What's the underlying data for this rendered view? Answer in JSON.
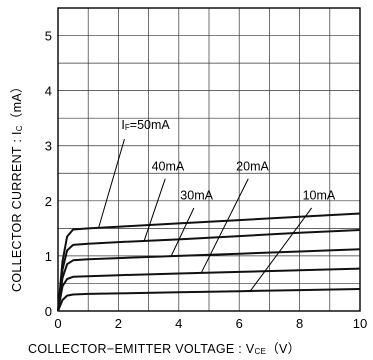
{
  "chart_data": {
    "type": "line",
    "xlabel": "COLLECTOR−EMITTER VOLTAGE : V",
    "xlabel_sub": "CE",
    "xlabel_unit": "（V）",
    "ylabel": "COLLECTOR CURRENT : I",
    "ylabel_sub": "C",
    "ylabel_unit": "（mA）",
    "xlim": [
      0,
      10
    ],
    "ylim": [
      0,
      5.5
    ],
    "x_ticks": [
      "0",
      "2",
      "4",
      "6",
      "8",
      "10"
    ],
    "x_tick_values": [
      0,
      2,
      4,
      6,
      8,
      10
    ],
    "y_ticks": [
      "0",
      "1",
      "2",
      "3",
      "4",
      "5"
    ],
    "y_tick_values": [
      0,
      1,
      2,
      3,
      4,
      5
    ],
    "grid": true,
    "series": [
      {
        "name": "IF=50mA",
        "x": [
          0,
          0.15,
          0.3,
          0.5,
          1,
          2,
          4,
          6,
          8,
          10
        ],
        "y": [
          0,
          0.9,
          1.35,
          1.48,
          1.5,
          1.53,
          1.59,
          1.65,
          1.71,
          1.77
        ]
      },
      {
        "name": "40mA",
        "x": [
          0,
          0.15,
          0.3,
          0.5,
          1,
          2,
          4,
          6,
          8,
          10
        ],
        "y": [
          0,
          0.75,
          1.1,
          1.2,
          1.22,
          1.25,
          1.3,
          1.36,
          1.42,
          1.47
        ]
      },
      {
        "name": "30mA",
        "x": [
          0,
          0.15,
          0.3,
          0.5,
          1,
          2,
          4,
          6,
          8,
          10
        ],
        "y": [
          0,
          0.6,
          0.85,
          0.92,
          0.94,
          0.96,
          1.0,
          1.04,
          1.08,
          1.12
        ]
      },
      {
        "name": "20mA",
        "x": [
          0,
          0.15,
          0.3,
          0.5,
          1,
          2,
          4,
          6,
          8,
          10
        ],
        "y": [
          0,
          0.45,
          0.58,
          0.62,
          0.63,
          0.65,
          0.68,
          0.71,
          0.74,
          0.77
        ]
      },
      {
        "name": "10mA",
        "x": [
          0,
          0.15,
          0.3,
          0.5,
          1,
          2,
          4,
          6,
          8,
          10
        ],
        "y": [
          0,
          0.2,
          0.28,
          0.3,
          0.31,
          0.32,
          0.34,
          0.36,
          0.38,
          0.4
        ]
      }
    ],
    "annotations": [
      {
        "label": "I",
        "sub": "F",
        "rest": "=50mA",
        "text_x": 2.1,
        "text_y": 3.3,
        "leader_from": [
          2.2,
          3.12
        ],
        "leader_to": [
          1.35,
          1.52
        ]
      },
      {
        "label": "40mA",
        "text_x": 3.1,
        "text_y": 2.55,
        "leader_from": [
          3.55,
          2.4
        ],
        "leader_to": [
          2.85,
          1.27
        ]
      },
      {
        "label": "30mA",
        "text_x": 4.05,
        "text_y": 2.02,
        "leader_from": [
          4.5,
          1.87
        ],
        "leader_to": [
          3.75,
          1.0
        ]
      },
      {
        "label": "20mA",
        "text_x": 5.9,
        "text_y": 2.55,
        "leader_from": [
          6.3,
          2.4
        ],
        "leader_to": [
          4.75,
          0.7
        ]
      },
      {
        "label": "10mA",
        "text_x": 8.1,
        "text_y": 2.02,
        "leader_from": [
          8.4,
          1.87
        ],
        "leader_to": [
          6.35,
          0.35
        ]
      }
    ]
  }
}
